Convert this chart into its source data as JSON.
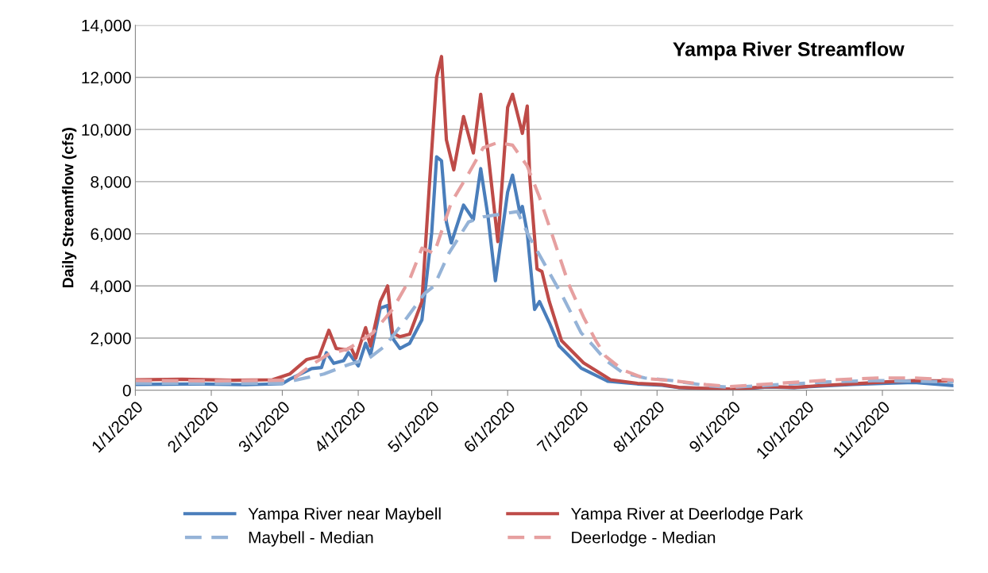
{
  "chart_data": {
    "type": "line",
    "title": "Yampa River Streamflow",
    "ylabel": "Daily Streamflow (cfs)",
    "xlim": [
      "2020-01-01",
      "2020-11-30"
    ],
    "xticks": [
      {
        "value": "2020-01-01",
        "label": "1/1/2020"
      },
      {
        "value": "2020-02-01",
        "label": "2/1/2020"
      },
      {
        "value": "2020-03-01",
        "label": "3/1/2020"
      },
      {
        "value": "2020-04-01",
        "label": "4/1/2020"
      },
      {
        "value": "2020-05-01",
        "label": "5/1/2020"
      },
      {
        "value": "2020-06-01",
        "label": "6/1/2020"
      },
      {
        "value": "2020-07-01",
        "label": "7/1/2020"
      },
      {
        "value": "2020-08-01",
        "label": "8/1/2020"
      },
      {
        "value": "2020-09-01",
        "label": "9/1/2020"
      },
      {
        "value": "2020-10-01",
        "label": "10/1/2020"
      },
      {
        "value": "2020-11-01",
        "label": "11/1/2020"
      }
    ],
    "ylim": [
      0,
      14000
    ],
    "yticks": [
      {
        "value": 0,
        "label": "0"
      },
      {
        "value": 2000,
        "label": "2,000"
      },
      {
        "value": 4000,
        "label": "4,000"
      },
      {
        "value": 6000,
        "label": "6,000"
      },
      {
        "value": 8000,
        "label": "8,000"
      },
      {
        "value": 10000,
        "label": "10,000"
      },
      {
        "value": 12000,
        "label": "12,000"
      },
      {
        "value": 14000,
        "label": "14,000"
      }
    ],
    "grid": "y",
    "legend": "bottom",
    "marker": "none",
    "series": [
      {
        "name": "Yampa River near Maybell",
        "color": "#4a7ebb",
        "line_style": "solid",
        "x": [
          "2020-01-01",
          "2020-01-25",
          "2020-02-15",
          "2020-03-01",
          "2020-03-04",
          "2020-03-13",
          "2020-03-17",
          "2020-03-19",
          "2020-03-22",
          "2020-03-26",
          "2020-03-28",
          "2020-04-01",
          "2020-04-04",
          "2020-04-06",
          "2020-04-10",
          "2020-04-13",
          "2020-04-15",
          "2020-04-18",
          "2020-04-22",
          "2020-04-27",
          "2020-05-01",
          "2020-05-03",
          "2020-05-05",
          "2020-05-07",
          "2020-05-09",
          "2020-05-14",
          "2020-05-18",
          "2020-05-21",
          "2020-05-24",
          "2020-05-27",
          "2020-06-01",
          "2020-06-03",
          "2020-06-06",
          "2020-06-07",
          "2020-06-09",
          "2020-06-12",
          "2020-06-14",
          "2020-06-18",
          "2020-06-22",
          "2020-07-01",
          "2020-07-12",
          "2020-07-24",
          "2020-08-03",
          "2020-08-10",
          "2020-08-24",
          "2020-09-02",
          "2020-09-15",
          "2020-09-26",
          "2020-10-07",
          "2020-10-20",
          "2020-11-03",
          "2020-11-14",
          "2020-11-30"
        ],
        "values": [
          220,
          240,
          210,
          250,
          420,
          830,
          870,
          1440,
          1030,
          1130,
          1440,
          930,
          1800,
          1350,
          3150,
          3250,
          2000,
          1600,
          1800,
          2700,
          6050,
          8950,
          8800,
          6450,
          5650,
          7100,
          6550,
          8500,
          6650,
          4200,
          7600,
          8250,
          6800,
          7050,
          6050,
          3100,
          3400,
          2600,
          1700,
          850,
          340,
          240,
          190,
          100,
          50,
          30,
          120,
          100,
          160,
          220,
          270,
          300,
          180
        ]
      },
      {
        "name": "Yampa River at Deerlodge Park",
        "color": "#be4b48",
        "line_style": "solid",
        "x": [
          "2020-01-01",
          "2020-01-20",
          "2020-02-10",
          "2020-02-26",
          "2020-03-04",
          "2020-03-11",
          "2020-03-16",
          "2020-03-20",
          "2020-03-23",
          "2020-03-27",
          "2020-03-29",
          "2020-03-31",
          "2020-04-04",
          "2020-04-06",
          "2020-04-10",
          "2020-04-13",
          "2020-04-15",
          "2020-04-18",
          "2020-04-22",
          "2020-04-27",
          "2020-04-30",
          "2020-05-03",
          "2020-05-05",
          "2020-05-07",
          "2020-05-10",
          "2020-05-14",
          "2020-05-18",
          "2020-05-21",
          "2020-05-24",
          "2020-05-28",
          "2020-06-01",
          "2020-06-03",
          "2020-06-07",
          "2020-06-09",
          "2020-06-10",
          "2020-06-13",
          "2020-06-15",
          "2020-06-18",
          "2020-06-23",
          "2020-07-02",
          "2020-07-13",
          "2020-07-24",
          "2020-08-03",
          "2020-08-10",
          "2020-08-24",
          "2020-09-02",
          "2020-09-15",
          "2020-09-26",
          "2020-10-07",
          "2020-10-20",
          "2020-11-03",
          "2020-11-14",
          "2020-11-30"
        ],
        "values": [
          400,
          420,
          380,
          400,
          620,
          1180,
          1290,
          2300,
          1600,
          1550,
          1650,
          1230,
          2400,
          1700,
          3400,
          4000,
          2200,
          2050,
          2150,
          3400,
          7800,
          12000,
          12800,
          9600,
          8450,
          10500,
          9100,
          11350,
          9100,
          5700,
          10850,
          11350,
          9850,
          10900,
          8200,
          4650,
          4550,
          3400,
          1900,
          1050,
          400,
          265,
          215,
          110,
          60,
          40,
          140,
          110,
          180,
          245,
          320,
          370,
          350
        ]
      },
      {
        "name": "Maybell - Median",
        "color": "#95b3d7",
        "line_style": "dashed",
        "x": [
          "2020-01-01",
          "2020-02-01",
          "2020-03-01",
          "2020-03-08",
          "2020-03-18",
          "2020-03-28",
          "2020-04-05",
          "2020-04-12",
          "2020-04-21",
          "2020-04-28",
          "2020-05-02",
          "2020-05-08",
          "2020-05-16",
          "2020-05-22",
          "2020-05-29",
          "2020-06-05",
          "2020-06-10",
          "2020-06-16",
          "2020-06-24",
          "2020-07-01",
          "2020-07-06",
          "2020-07-11",
          "2020-07-18",
          "2020-07-27",
          "2020-08-07",
          "2020-08-21",
          "2020-08-31",
          "2020-09-20",
          "2020-10-10",
          "2020-10-30",
          "2020-11-30"
        ],
        "values": [
          270,
          260,
          265,
          420,
          620,
          980,
          1200,
          1700,
          2800,
          3700,
          4000,
          5250,
          6450,
          6650,
          6750,
          6850,
          5850,
          4850,
          3500,
          2200,
          1700,
          1150,
          670,
          470,
          370,
          180,
          110,
          215,
          320,
          370,
          320
        ]
      },
      {
        "name": "Deerlodge - Median",
        "color": "#e6a0a0",
        "line_style": "dashed",
        "x": [
          "2020-01-01",
          "2020-02-01",
          "2020-03-01",
          "2020-03-06",
          "2020-03-13",
          "2020-03-20",
          "2020-03-28",
          "2020-04-07",
          "2020-04-15",
          "2020-04-22",
          "2020-04-27",
          "2020-05-02",
          "2020-05-09",
          "2020-05-16",
          "2020-05-22",
          "2020-05-28",
          "2020-06-03",
          "2020-06-09",
          "2020-06-14",
          "2020-06-21",
          "2020-06-26",
          "2020-07-02",
          "2020-07-07",
          "2020-07-11",
          "2020-07-18",
          "2020-07-27",
          "2020-08-07",
          "2020-08-21",
          "2020-08-31",
          "2020-09-20",
          "2020-10-10",
          "2020-10-30",
          "2020-11-14",
          "2020-11-30"
        ],
        "values": [
          370,
          360,
          380,
          470,
          980,
          1390,
          1590,
          2200,
          3100,
          4250,
          5450,
          5250,
          7200,
          8300,
          9300,
          9500,
          9400,
          8600,
          7400,
          5450,
          4050,
          2800,
          1900,
          1300,
          780,
          450,
          370,
          215,
          140,
          265,
          390,
          470,
          470,
          390
        ]
      }
    ]
  }
}
